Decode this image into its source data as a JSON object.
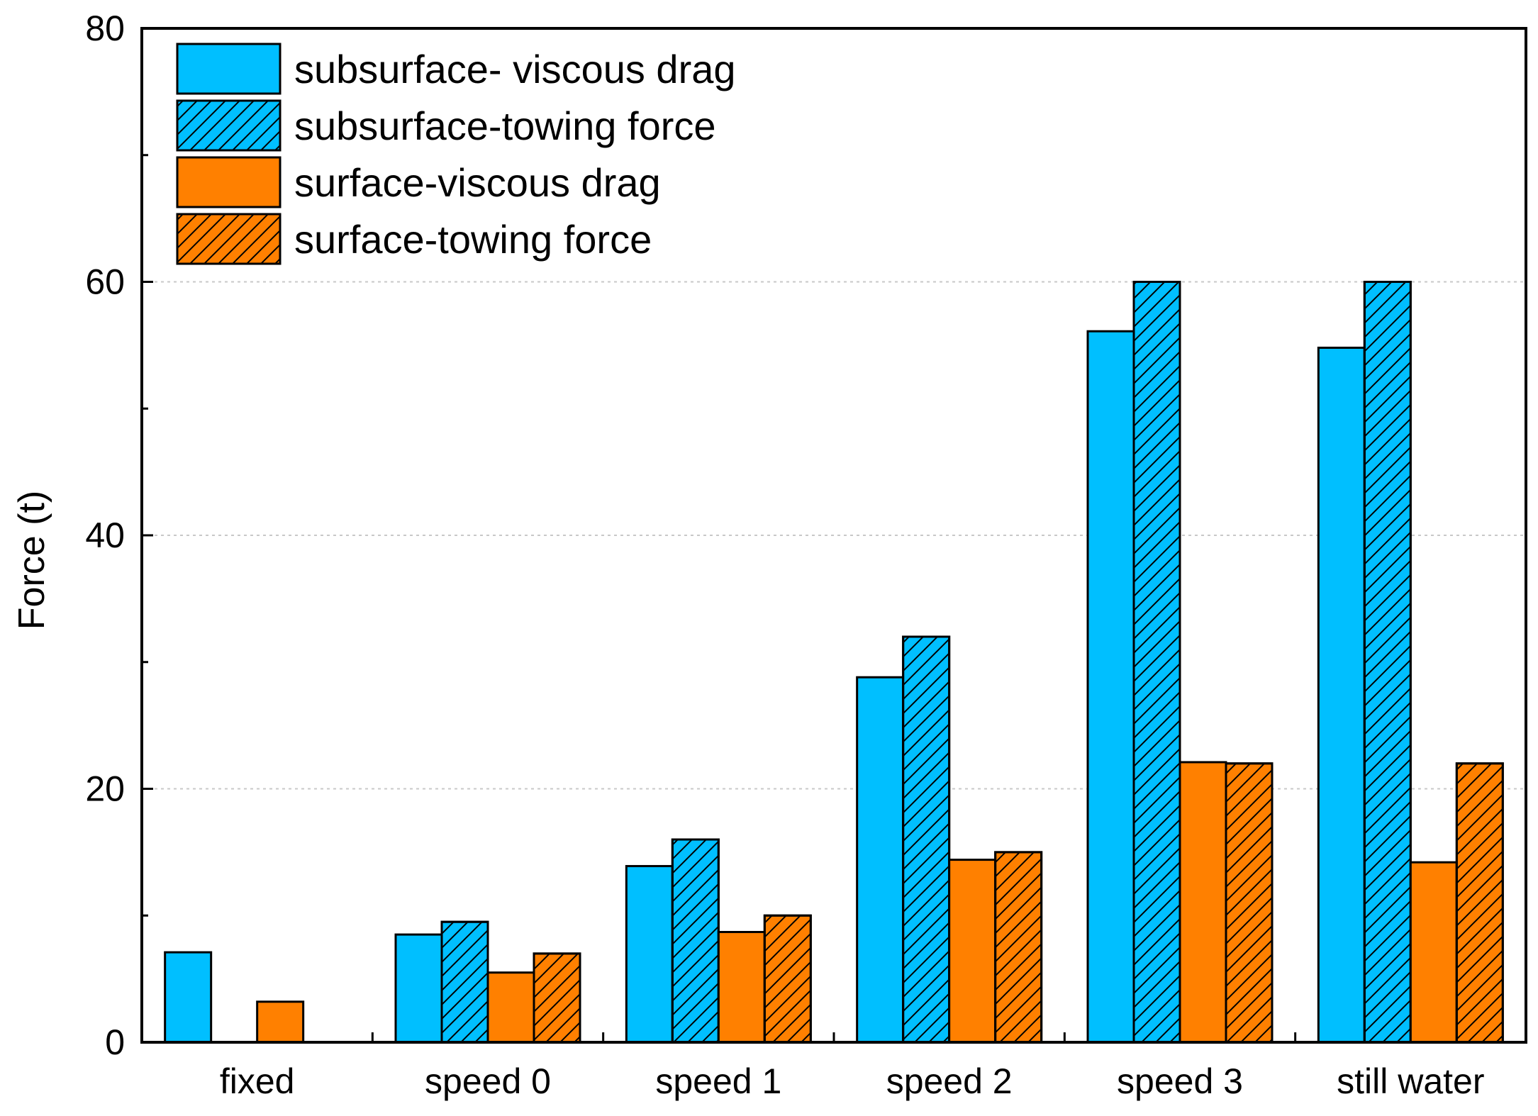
{
  "chart_data": {
    "type": "bar",
    "title": "",
    "xlabel": "",
    "ylabel": "Force (t)",
    "ylim": [
      0,
      80
    ],
    "yticks": [
      0,
      20,
      40,
      60,
      80
    ],
    "y_minor_step": 10,
    "grid": "horizontal dotted at major ticks",
    "legend_position": "top-left",
    "categories": [
      "fixed",
      "speed 0",
      "speed 1",
      "speed 2",
      "speed 3",
      "still water"
    ],
    "series": [
      {
        "name": "subsurface- viscous drag",
        "color": "#00bfff",
        "hatch": false,
        "values": [
          7.1,
          8.5,
          13.9,
          28.8,
          56.1,
          54.8
        ]
      },
      {
        "name": "subsurface-towing force",
        "color": "#00bfff",
        "hatch": true,
        "values": [
          null,
          9.5,
          16.0,
          32.0,
          60.0,
          60.0
        ]
      },
      {
        "name": "surface-viscous drag",
        "color": "#ff8000",
        "hatch": false,
        "values": [
          3.2,
          5.5,
          8.7,
          14.4,
          22.1,
          14.2
        ]
      },
      {
        "name": "surface-towing force",
        "color": "#ff8000",
        "hatch": true,
        "values": [
          null,
          7.0,
          10.0,
          15.0,
          22.0,
          22.0
        ]
      }
    ]
  }
}
